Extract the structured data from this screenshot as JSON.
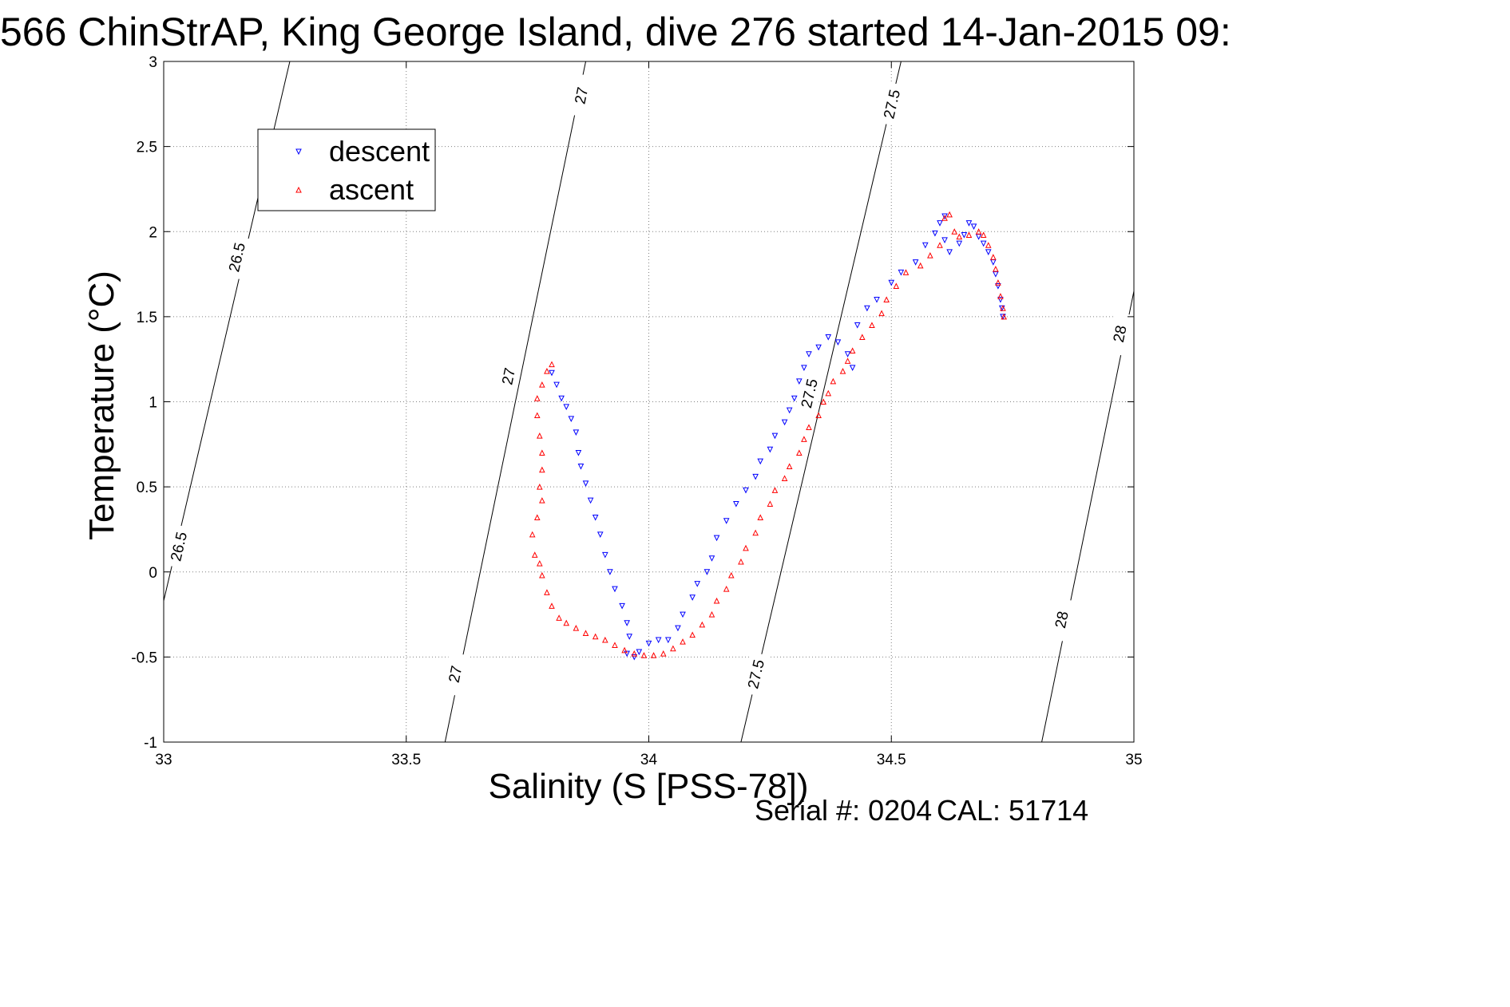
{
  "title": "566 ChinStrAP, King George Island, dive 276 started 14-Jan-2015 09:",
  "footer": {
    "serial_label": "Serial #: 0204",
    "cal_label": "CAL: 51714"
  },
  "colors": {
    "descent": "#0000ff",
    "ascent": "#ff0000",
    "contour": "#000000",
    "grid": "#808080"
  },
  "chart_data": {
    "type": "scatter",
    "xlabel": "Salinity (S [PSS-78])",
    "ylabel": "Temperature (°C)",
    "xlim": [
      33,
      35
    ],
    "ylim": [
      -1,
      3
    ],
    "x_ticks": [
      33,
      33.5,
      34,
      34.5,
      35
    ],
    "x_tick_labels": [
      "33",
      "33.5",
      "34",
      "34.5",
      "35"
    ],
    "y_ticks": [
      -1,
      -0.5,
      0,
      0.5,
      1,
      1.5,
      2,
      2.5,
      3
    ],
    "y_tick_labels": [
      "-1",
      "-0.5",
      "0",
      "0.5",
      "1",
      "1.5",
      "2",
      "2.5",
      "3"
    ],
    "grid": true,
    "legend_position": "top-left",
    "density_contours": [
      {
        "label": "26.5",
        "points": [
          [
            33.0,
            -0.17
          ],
          [
            33.26,
            3.0
          ]
        ],
        "label_points": [
          [
            33.15,
            1.85
          ],
          [
            33.03,
            0.15
          ]
        ]
      },
      {
        "label": "27",
        "points": [
          [
            33.58,
            -1.0
          ],
          [
            33.87,
            3.0
          ]
        ],
        "label_points": [
          [
            33.86,
            2.8
          ],
          [
            33.71,
            1.15
          ],
          [
            33.6,
            -0.6
          ]
        ]
      },
      {
        "label": "27.5",
        "points": [
          [
            34.19,
            -1.0
          ],
          [
            34.52,
            3.0
          ]
        ],
        "label_points": [
          [
            34.5,
            2.75
          ],
          [
            34.33,
            1.05
          ],
          [
            34.22,
            -0.6
          ]
        ]
      },
      {
        "label": "28",
        "points": [
          [
            34.81,
            -1.0
          ],
          [
            35.0,
            1.65
          ]
        ],
        "label_points": [
          [
            34.97,
            1.4
          ],
          [
            34.85,
            -0.28
          ]
        ]
      }
    ],
    "series": [
      {
        "name": "descent",
        "marker": "down-triangle",
        "points": [
          [
            33.8,
            1.17
          ],
          [
            33.81,
            1.1
          ],
          [
            33.82,
            1.02
          ],
          [
            33.83,
            0.97
          ],
          [
            33.84,
            0.9
          ],
          [
            33.85,
            0.82
          ],
          [
            33.855,
            0.7
          ],
          [
            33.86,
            0.62
          ],
          [
            33.87,
            0.52
          ],
          [
            33.88,
            0.42
          ],
          [
            33.89,
            0.32
          ],
          [
            33.9,
            0.22
          ],
          [
            33.91,
            0.1
          ],
          [
            33.92,
            0.0
          ],
          [
            33.93,
            -0.1
          ],
          [
            33.945,
            -0.2
          ],
          [
            33.955,
            -0.3
          ],
          [
            33.96,
            -0.38
          ],
          [
            33.955,
            -0.48
          ],
          [
            33.97,
            -0.5
          ],
          [
            33.98,
            -0.47
          ],
          [
            34.0,
            -0.42
          ],
          [
            34.02,
            -0.4
          ],
          [
            34.04,
            -0.4
          ],
          [
            34.06,
            -0.33
          ],
          [
            34.07,
            -0.25
          ],
          [
            34.09,
            -0.15
          ],
          [
            34.1,
            -0.07
          ],
          [
            34.12,
            0.0
          ],
          [
            34.13,
            0.08
          ],
          [
            34.14,
            0.2
          ],
          [
            34.16,
            0.3
          ],
          [
            34.18,
            0.4
          ],
          [
            34.2,
            0.48
          ],
          [
            34.22,
            0.56
          ],
          [
            34.23,
            0.65
          ],
          [
            34.25,
            0.72
          ],
          [
            34.26,
            0.8
          ],
          [
            34.28,
            0.88
          ],
          [
            34.29,
            0.95
          ],
          [
            34.3,
            1.02
          ],
          [
            34.31,
            1.12
          ],
          [
            34.32,
            1.2
          ],
          [
            34.33,
            1.28
          ],
          [
            34.35,
            1.32
          ],
          [
            34.37,
            1.38
          ],
          [
            34.39,
            1.35
          ],
          [
            34.41,
            1.28
          ],
          [
            34.42,
            1.2
          ],
          [
            34.43,
            1.45
          ],
          [
            34.45,
            1.55
          ],
          [
            34.47,
            1.6
          ],
          [
            34.5,
            1.7
          ],
          [
            34.52,
            1.76
          ],
          [
            34.55,
            1.82
          ],
          [
            34.57,
            1.92
          ],
          [
            34.59,
            1.99
          ],
          [
            34.6,
            2.05
          ],
          [
            34.61,
            2.09
          ],
          [
            34.61,
            1.95
          ],
          [
            34.62,
            1.88
          ],
          [
            34.64,
            1.93
          ],
          [
            34.65,
            1.98
          ],
          [
            34.66,
            2.05
          ],
          [
            34.67,
            2.03
          ],
          [
            34.68,
            1.97
          ],
          [
            34.69,
            1.93
          ],
          [
            34.7,
            1.88
          ],
          [
            34.71,
            1.82
          ],
          [
            34.715,
            1.75
          ],
          [
            34.72,
            1.68
          ],
          [
            34.725,
            1.6
          ],
          [
            34.728,
            1.55
          ],
          [
            34.73,
            1.5
          ]
        ]
      },
      {
        "name": "ascent",
        "marker": "up-triangle",
        "points": [
          [
            33.8,
            1.22
          ],
          [
            33.79,
            1.18
          ],
          [
            33.78,
            1.1
          ],
          [
            33.77,
            1.02
          ],
          [
            33.77,
            0.92
          ],
          [
            33.775,
            0.8
          ],
          [
            33.78,
            0.7
          ],
          [
            33.78,
            0.6
          ],
          [
            33.775,
            0.5
          ],
          [
            33.78,
            0.42
          ],
          [
            33.77,
            0.32
          ],
          [
            33.76,
            0.22
          ],
          [
            33.765,
            0.1
          ],
          [
            33.775,
            0.05
          ],
          [
            33.78,
            -0.02
          ],
          [
            33.79,
            -0.12
          ],
          [
            33.8,
            -0.2
          ],
          [
            33.815,
            -0.27
          ],
          [
            33.83,
            -0.3
          ],
          [
            33.85,
            -0.33
          ],
          [
            33.87,
            -0.36
          ],
          [
            33.89,
            -0.38
          ],
          [
            33.91,
            -0.4
          ],
          [
            33.93,
            -0.43
          ],
          [
            33.95,
            -0.46
          ],
          [
            33.97,
            -0.48
          ],
          [
            33.99,
            -0.49
          ],
          [
            34.01,
            -0.49
          ],
          [
            34.03,
            -0.48
          ],
          [
            34.05,
            -0.45
          ],
          [
            34.07,
            -0.41
          ],
          [
            34.09,
            -0.37
          ],
          [
            34.11,
            -0.31
          ],
          [
            34.13,
            -0.25
          ],
          [
            34.14,
            -0.17
          ],
          [
            34.16,
            -0.1
          ],
          [
            34.17,
            -0.02
          ],
          [
            34.19,
            0.06
          ],
          [
            34.2,
            0.14
          ],
          [
            34.22,
            0.23
          ],
          [
            34.23,
            0.32
          ],
          [
            34.25,
            0.4
          ],
          [
            34.26,
            0.48
          ],
          [
            34.28,
            0.55
          ],
          [
            34.29,
            0.62
          ],
          [
            34.31,
            0.7
          ],
          [
            34.32,
            0.78
          ],
          [
            34.33,
            0.85
          ],
          [
            34.35,
            0.92
          ],
          [
            34.36,
            1.0
          ],
          [
            34.37,
            1.05
          ],
          [
            34.38,
            1.12
          ],
          [
            34.4,
            1.18
          ],
          [
            34.41,
            1.24
          ],
          [
            34.42,
            1.3
          ],
          [
            34.44,
            1.38
          ],
          [
            34.46,
            1.45
          ],
          [
            34.48,
            1.52
          ],
          [
            34.49,
            1.6
          ],
          [
            34.51,
            1.68
          ],
          [
            34.53,
            1.76
          ],
          [
            34.56,
            1.8
          ],
          [
            34.58,
            1.86
          ],
          [
            34.6,
            1.92
          ],
          [
            34.61,
            2.08
          ],
          [
            34.62,
            2.1
          ],
          [
            34.63,
            2.0
          ],
          [
            34.64,
            1.97
          ],
          [
            34.66,
            1.98
          ],
          [
            34.68,
            2.0
          ],
          [
            34.69,
            1.98
          ],
          [
            34.7,
            1.92
          ],
          [
            34.71,
            1.85
          ],
          [
            34.715,
            1.78
          ],
          [
            34.72,
            1.7
          ],
          [
            34.725,
            1.62
          ],
          [
            34.73,
            1.55
          ],
          [
            34.732,
            1.5
          ]
        ]
      }
    ]
  }
}
